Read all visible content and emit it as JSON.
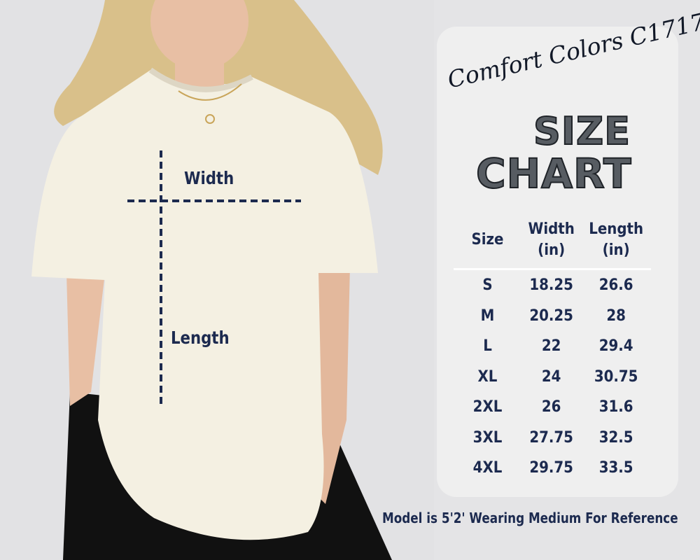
{
  "photo": {
    "width_label": "Width",
    "length_label": "Length"
  },
  "card": {
    "brand": "Comfort Colors C1717",
    "title_line1": "SIZE",
    "title_line2": "CHART"
  },
  "table": {
    "headers": [
      "Size",
      "Width\n(in)",
      "Length\n(in)"
    ],
    "header_size": "Size",
    "header_width_1": "Width",
    "header_width_2": "(in)",
    "header_length_1": "Length",
    "header_length_2": "(in)",
    "rows": [
      {
        "size": "S",
        "width": "18.25",
        "length": "26.6"
      },
      {
        "size": "M",
        "width": "20.25",
        "length": "28"
      },
      {
        "size": "L",
        "width": "22",
        "length": "29.4"
      },
      {
        "size": "XL",
        "width": "24",
        "length": "30.75"
      },
      {
        "size": "2XL",
        "width": "26",
        "length": "31.6"
      },
      {
        "size": "3XL",
        "width": "27.75",
        "length": "32.5"
      },
      {
        "size": "4XL",
        "width": "29.75",
        "length": "33.5"
      }
    ]
  },
  "footer": "Model is 5'2' Wearing Medium For Reference",
  "colors": {
    "navy": "#1c2a4f",
    "card": "#efefef",
    "background": "#e4e4e6",
    "shirt": "#f4f0e2"
  }
}
